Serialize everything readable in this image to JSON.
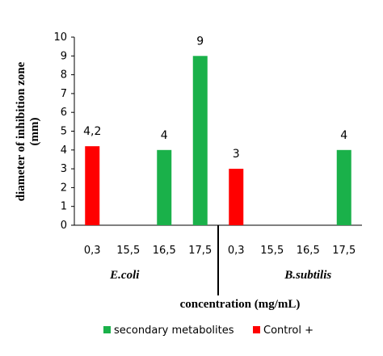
{
  "chart_data": {
    "type": "bar",
    "categories": [
      "0,3",
      "15,5",
      "16,5",
      "17,5",
      "0,3",
      "15,5",
      "16,5",
      "17,5"
    ],
    "groups": [
      "E.coli",
      "B.subtilis"
    ],
    "series": [
      {
        "name": "secondary metabolites",
        "color": "#1ab14a",
        "values": [
          null,
          0,
          4,
          9,
          null,
          0,
          0,
          4
        ]
      },
      {
        "name": "Control +",
        "color": "#ff0000",
        "values": [
          4.2,
          null,
          null,
          null,
          3,
          null,
          null,
          null
        ]
      }
    ],
    "data_labels": [
      "4,2",
      "",
      "4",
      "9",
      "3",
      "",
      "",
      "4"
    ],
    "xlabel": "concentration (mg/mL)",
    "ylabel_lines": [
      "diameter of inhibition zone",
      "(mm)"
    ],
    "ylim": [
      0,
      10
    ],
    "yticks": [
      "0",
      "1",
      "2",
      "3",
      "4",
      "5",
      "6",
      "7",
      "8",
      "9",
      "10"
    ],
    "grid": false,
    "legend_position": "bottom"
  }
}
